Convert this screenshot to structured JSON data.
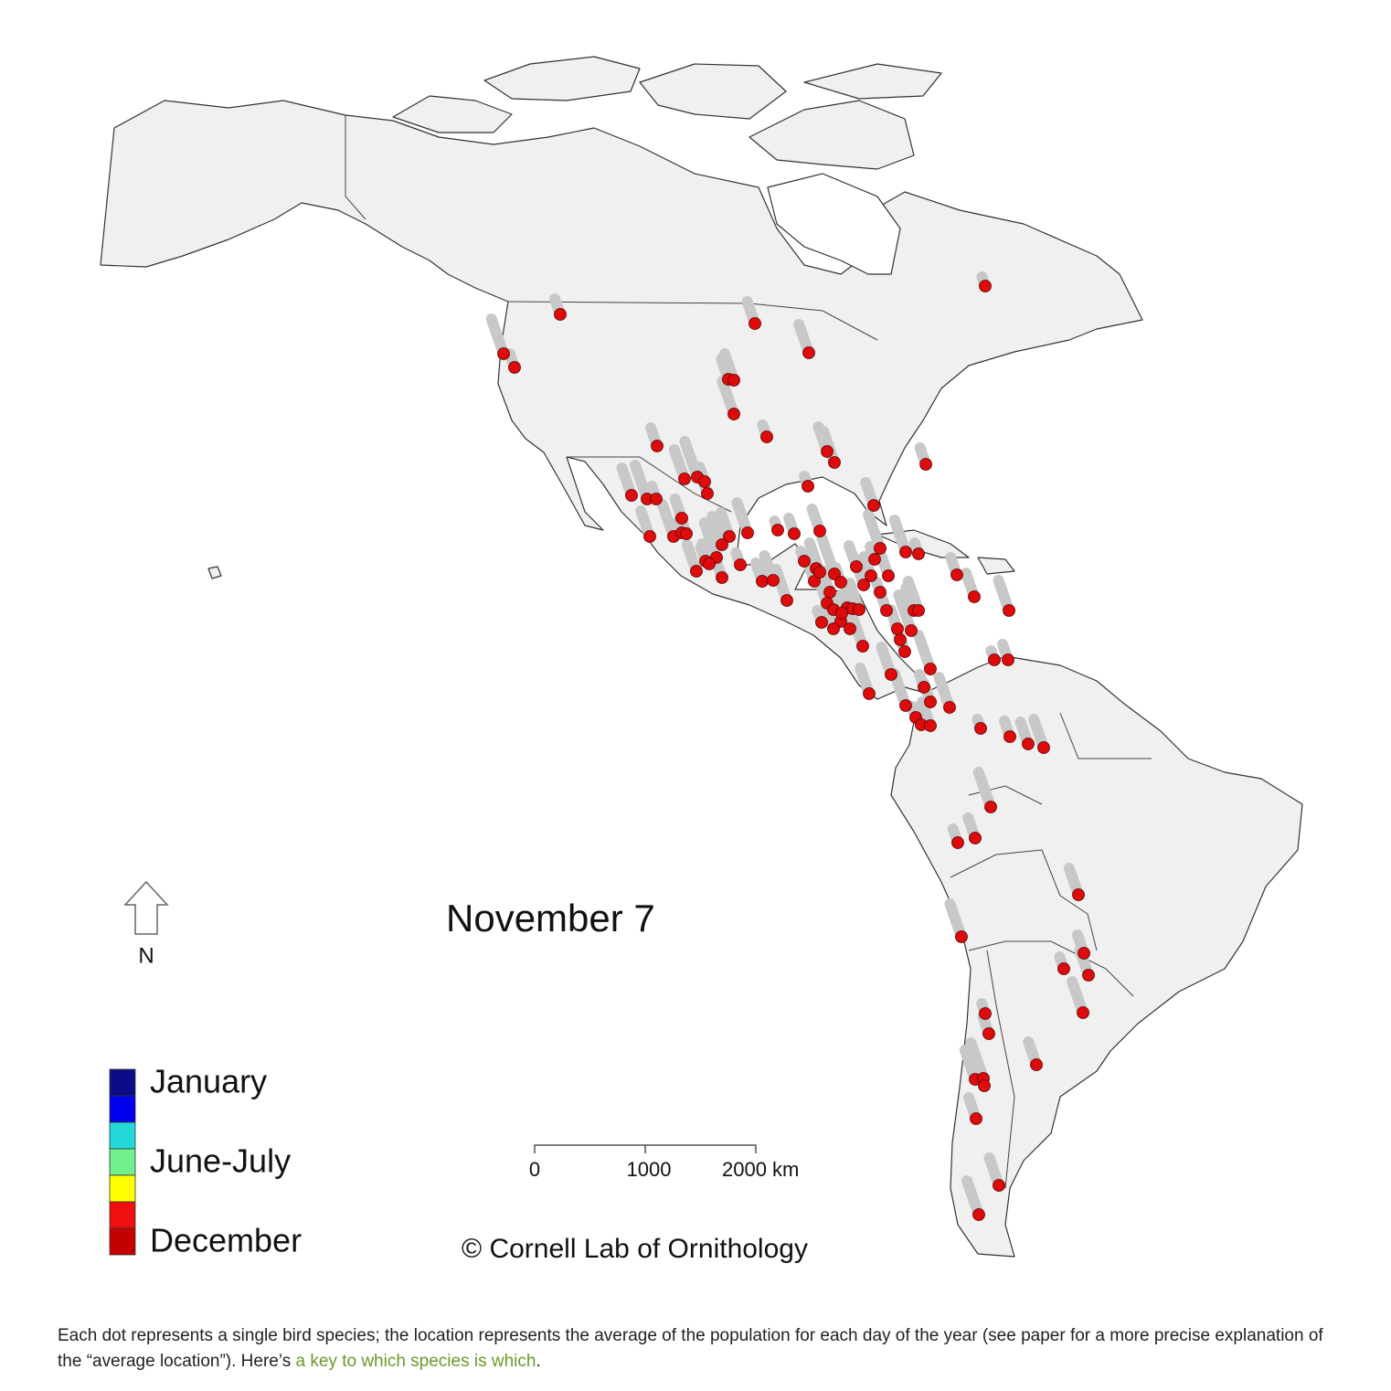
{
  "map": {
    "date_label": "November 7",
    "north_label": "N",
    "legend": {
      "colors": [
        "#0b0b86",
        "#0000ee",
        "#22d8d8",
        "#72f08e",
        "#ffff00",
        "#ee1010",
        "#c40000"
      ],
      "labels": [
        "January",
        "June-July",
        "December"
      ]
    },
    "scale_bar": {
      "labels": [
        "0",
        "1000",
        "2000 km"
      ]
    },
    "credit": "© Cornell Lab of Ornithology"
  },
  "caption": {
    "text": "Each dot represents a single bird species; the location represents the average of the population for each day of the year (see paper for a more precise explanation of the “average location”). Here’s ",
    "link": "a key to which species is which",
    "end": "."
  }
}
